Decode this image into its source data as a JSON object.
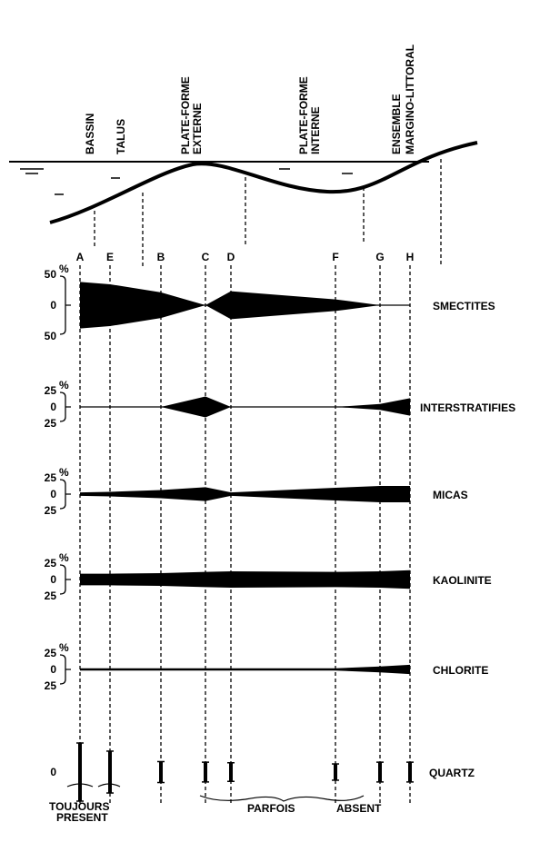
{
  "environments": [
    [
      "BASSIN"
    ],
    [
      "TALUS"
    ],
    [
      "PLATE-FORME",
      "EXTERNE"
    ],
    [
      "PLATE-FORME",
      "INTERNE"
    ],
    [
      "ENSEMBLE",
      "MARGINO-LITTORAL"
    ]
  ],
  "stations": [
    "A",
    "E",
    "B",
    "C",
    "D",
    "F",
    "G",
    "H"
  ],
  "percent": "%",
  "minerals": [
    {
      "name": "SMECTITES",
      "scale_top": 50,
      "scale_zero": 0,
      "scale_bottom": 50,
      "values": [
        40,
        36,
        22,
        0,
        24,
        10,
        0,
        0
      ]
    },
    {
      "name": "INTERSTRATIFIES",
      "scale_top": 25,
      "scale_zero": 0,
      "scale_bottom": 25,
      "values": [
        0,
        0,
        0,
        18,
        0,
        0,
        5,
        15
      ]
    },
    {
      "name": "MICAS",
      "scale_top": 25,
      "scale_zero": 0,
      "scale_bottom": 25,
      "values": [
        3,
        4,
        7,
        12,
        3,
        11,
        14,
        14
      ]
    },
    {
      "name": "KAOLINITE",
      "scale_top": 25,
      "scale_zero": 0,
      "scale_bottom": 25,
      "values": [
        10,
        10,
        11,
        13,
        14,
        13,
        14,
        16
      ]
    },
    {
      "name": "CHLORITE",
      "scale_top": 25,
      "scale_zero": 0,
      "scale_bottom": 25,
      "values": [
        2,
        2,
        2,
        2,
        2,
        2,
        5,
        8
      ]
    }
  ],
  "quartz": {
    "name": "QUARTZ",
    "zero": 0,
    "values": [
      50,
      36,
      18,
      17,
      16,
      14,
      17,
      17
    ]
  },
  "legend": {
    "always": [
      "TOUJOURS",
      "PRESENT"
    ],
    "sometimes": "PARFOIS",
    "absent": "ABSENT"
  }
}
